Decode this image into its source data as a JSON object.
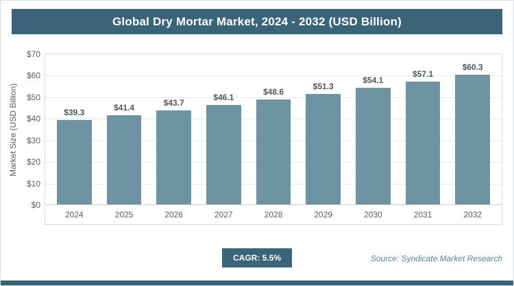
{
  "header": {
    "title": "Global Dry Mortar Market, 2024 - 2032 (USD Billion)"
  },
  "chart_data": {
    "type": "bar",
    "title": "Global Dry Mortar Market, 2024 - 2032 (USD Billion)",
    "categories": [
      "2024",
      "2025",
      "2026",
      "2027",
      "2028",
      "2029",
      "2030",
      "2031",
      "2032"
    ],
    "values": [
      39.3,
      41.4,
      43.7,
      46.1,
      48.6,
      51.3,
      54.1,
      57.1,
      60.3
    ],
    "value_labels": [
      "$39.3",
      "$41.4",
      "$43.7",
      "$46.1",
      "$48.6",
      "$51.3",
      "$54.1",
      "$57.1",
      "$60.3"
    ],
    "xlabel": "",
    "ylabel": "Market Size (USD Billion)",
    "ylim": [
      0,
      70
    ],
    "ytick_step": 10,
    "ytick_labels": [
      "$0",
      "$10",
      "$20",
      "$30",
      "$40",
      "$50",
      "$60",
      "$70"
    ],
    "grid": "horizontal",
    "legend": "none",
    "bar_color": "#6e93a3"
  },
  "footer": {
    "cagr_label": "CAGR: 5.5%",
    "source": "Source: Syndicate Market Research"
  },
  "colors": {
    "accent_teal": "#3c6478",
    "bar_teal": "#6e93a3"
  }
}
